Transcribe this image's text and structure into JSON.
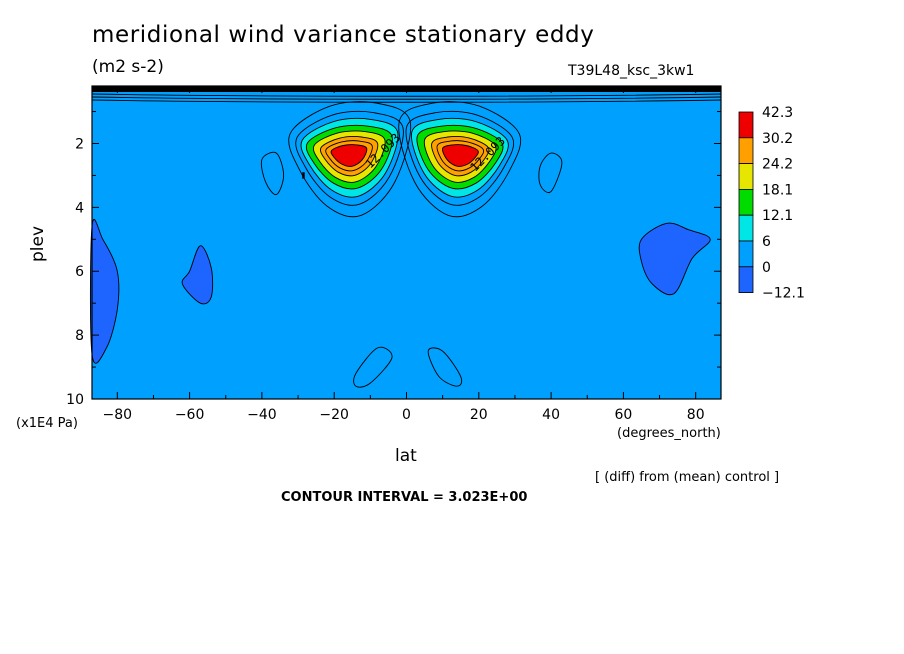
{
  "chart_data": {
    "type": "contour",
    "title": "meridional wind variance  stationary eddy",
    "subtitle": "(m2 s-2)",
    "run_label": "T39L48_ksc_3kw1",
    "xlabel": "lat",
    "x_units": "(degrees_north)",
    "ylabel": "plev",
    "y_units": "(x1E4 Pa)",
    "diff_note": "[ (diff) from (mean) control ]",
    "contour_interval_label": "CONTOUR INTERVAL = 3.023E+00",
    "xlim": [
      -87,
      87
    ],
    "ylim": [
      10,
      0.2
    ],
    "x_ticks": [
      -80,
      -60,
      -40,
      -20,
      0,
      20,
      40,
      60,
      80
    ],
    "x_tick_labels": [
      "−80",
      "−60",
      "−40",
      "−20",
      "0",
      "20",
      "40",
      "60",
      "80"
    ],
    "y_ticks": [
      2,
      4,
      6,
      8,
      10
    ],
    "y_tick_labels": [
      "2",
      "4",
      "6",
      "8",
      "10"
    ],
    "colorbar": {
      "levels": [
        -12.1,
        0,
        6,
        12.1,
        18.1,
        24.2,
        30.2,
        42.3
      ],
      "labels": [
        "42.3",
        "30.2",
        "24.2",
        "18.1",
        "12.1",
        "6",
        "0",
        "−12.1"
      ],
      "colors": [
        "#ee0000",
        "#ffa000",
        "#e6e600",
        "#00dc00",
        "#00e6e6",
        "#00a0ff",
        "#1e64ff"
      ]
    },
    "inline_labels": [
      "12.093",
      "12.093"
    ],
    "features": [
      {
        "name": "NH jet maximum",
        "lat": 15,
        "plev": 2.0,
        "value": 42.3
      },
      {
        "name": "SH jet maximum",
        "lat": -16,
        "plev": 2.0,
        "value": 42.3
      },
      {
        "name": "southern negative lobe",
        "lat": -82,
        "plev": 6.5,
        "value": -3
      },
      {
        "name": "subtropical negative lobe",
        "lat": -58,
        "plev": 6.0,
        "value": -3
      },
      {
        "name": "northern negative lobe",
        "lat": 74,
        "plev": 5.5,
        "value": -3
      }
    ]
  }
}
